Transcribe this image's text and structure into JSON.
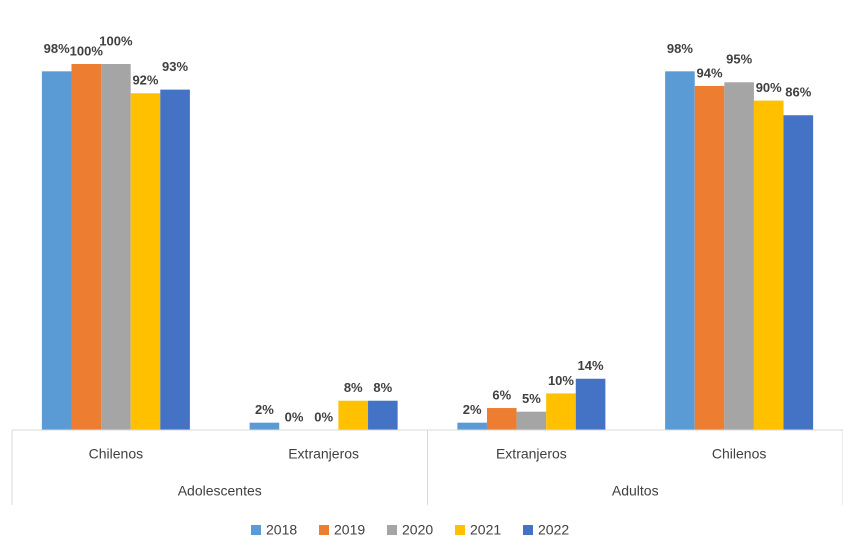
{
  "chart_data": {
    "type": "bar",
    "groups": [
      {
        "name": "Adolescentes",
        "categories": [
          "Chilenos",
          "Extranjeros"
        ]
      },
      {
        "name": "Adultos",
        "categories": [
          "Extranjeros",
          "Chilenos"
        ]
      }
    ],
    "series": [
      {
        "name": "2018",
        "color": "#5b9bd5",
        "values": [
          98,
          2,
          2,
          98
        ],
        "value_labels": [
          "98%",
          "2%",
          "2%",
          "98%"
        ]
      },
      {
        "name": "2019",
        "color": "#ed7d31",
        "values": [
          100,
          0,
          6,
          94
        ],
        "value_labels": [
          "100%",
          "0%",
          "6%",
          "94%"
        ]
      },
      {
        "name": "2020",
        "color": "#a5a5a5",
        "values": [
          100,
          0,
          5,
          95
        ],
        "value_labels": [
          "100%",
          "0%",
          "5%",
          "95%"
        ]
      },
      {
        "name": "2021",
        "color": "#ffc000",
        "values": [
          92,
          8,
          10,
          90
        ],
        "value_labels": [
          "92%",
          "8%",
          "10%",
          "90%"
        ]
      },
      {
        "name": "2022",
        "color": "#4472c4",
        "values": [
          93,
          8,
          14,
          86
        ],
        "value_labels": [
          "93%",
          "8%",
          "14%",
          "86%"
        ]
      }
    ],
    "legend": "bottom"
  }
}
